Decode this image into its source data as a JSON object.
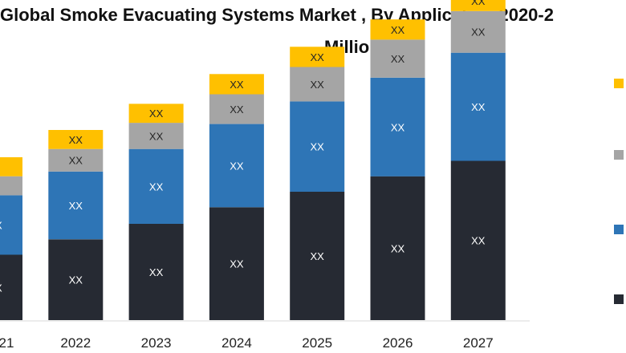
{
  "chart_data": {
    "type": "bar",
    "stacked": true,
    "title_line1": "Global Smoke Evacuating Systems Market , By Application 2020-2",
    "title_line2": "Million)",
    "categories": [
      "21",
      "2022",
      "2023",
      "2024",
      "2025",
      "2026",
      "2027"
    ],
    "ylim": [
      0,
      270
    ],
    "grid": false,
    "legend_position": "right",
    "series": [
      {
        "name": "",
        "color": "#262a33",
        "values": [
          55,
          68,
          81,
          95,
          108,
          121,
          134
        ],
        "labels": [
          "XX",
          "XX",
          "XX",
          "XX",
          "XX",
          "XX",
          "XX"
        ]
      },
      {
        "name": "",
        "color": "#2e75b6",
        "values": [
          50,
          57,
          63,
          70,
          76,
          83,
          91
        ],
        "labels": [
          "XX",
          "XX",
          "XX",
          "XX",
          "XX",
          "XX",
          "XX"
        ]
      },
      {
        "name": "",
        "color": "#a5a5a5",
        "values": [
          16,
          19,
          22,
          25,
          29,
          32,
          35
        ],
        "labels": [
          "X",
          "XX",
          "XX",
          "XX",
          "XX",
          "XX",
          "XX"
        ]
      },
      {
        "name": "",
        "color": "#ffc000",
        "values": [
          16,
          16,
          16,
          17,
          17,
          17,
          17
        ],
        "labels": [
          "X",
          "XX",
          "XX",
          "XX",
          "XX",
          "XX",
          "XX"
        ]
      }
    ]
  }
}
